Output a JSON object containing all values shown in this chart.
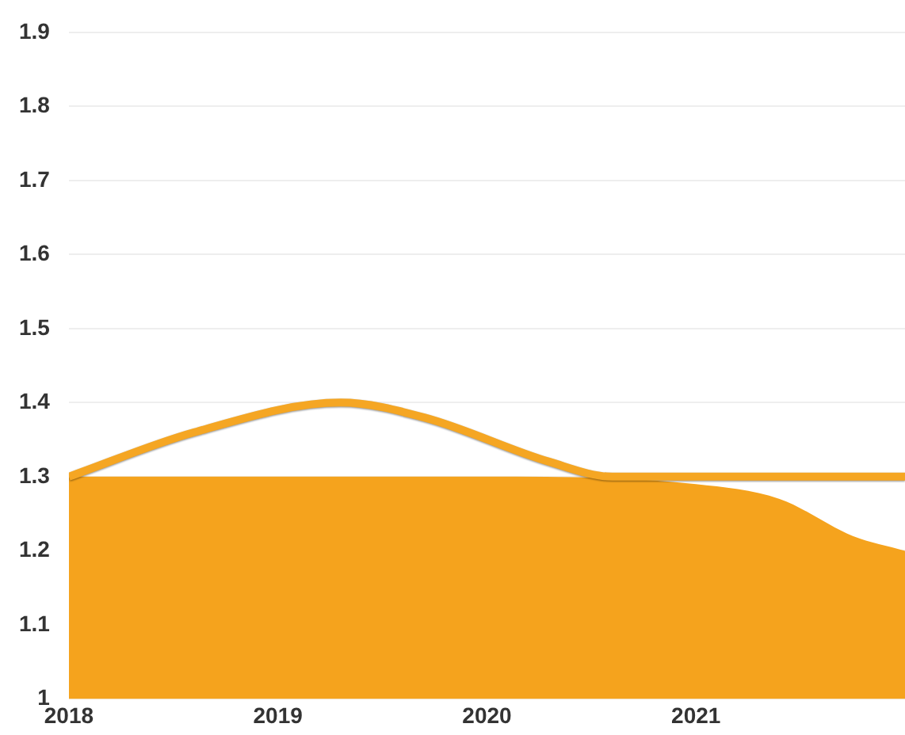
{
  "chart_data": {
    "type": "line",
    "xlim": [
      2018,
      2022
    ],
    "xticks": [
      2018,
      2019,
      2020,
      2021
    ],
    "ylim": [
      1,
      1.9
    ],
    "yticks": [
      1,
      1.1,
      1.2,
      1.3,
      1.4,
      1.5,
      1.6,
      1.7,
      1.8,
      1.9
    ],
    "grid": "y",
    "legend": false,
    "marker": "none",
    "line_style": "solid",
    "series": [
      {
        "type": "area",
        "color": "#f5a31d",
        "x": [
          2018,
          2019,
          2020,
          2021,
          2021.4,
          2021.75,
          2022
        ],
        "values": [
          1.3,
          1.3,
          1.3,
          1.29,
          1.27,
          1.22,
          1.2
        ]
      },
      {
        "type": "line",
        "color": "#f5a623",
        "x": [
          2018,
          2018.6,
          2019.3,
          2019.7,
          2020.3,
          2020.6,
          2021,
          2022
        ],
        "values": [
          1.3,
          1.36,
          1.4,
          1.38,
          1.32,
          1.3,
          1.3,
          1.3
        ]
      }
    ]
  }
}
